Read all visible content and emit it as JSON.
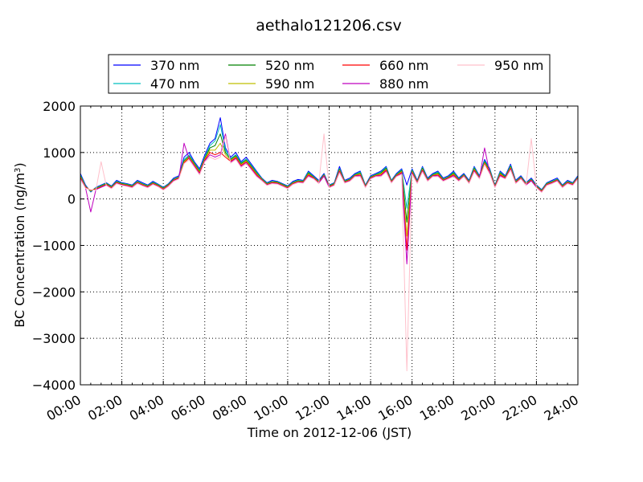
{
  "chart_data": {
    "type": "line",
    "title": "aethalo121206.csv",
    "xlabel": "Time on 2012-12-06 (JST)",
    "ylabel": "BC Concentration (ng/m",
    "ylabel_sup": "3",
    "ylabel_tail": ")",
    "xlim": [
      0,
      24
    ],
    "ylim": [
      -4000,
      2000
    ],
    "xticks": [
      0,
      2,
      4,
      6,
      8,
      10,
      12,
      14,
      16,
      18,
      20,
      22,
      24
    ],
    "xtick_labels": [
      "00:00",
      "02:00",
      "04:00",
      "06:00",
      "08:00",
      "10:00",
      "12:00",
      "14:00",
      "16:00",
      "18:00",
      "20:00",
      "22:00",
      "24:00"
    ],
    "yticks": [
      -4000,
      -3000,
      -2000,
      -1000,
      0,
      1000,
      2000
    ],
    "ytick_labels": [
      "−4000",
      "−3000",
      "−2000",
      "−1000",
      "0",
      "1000",
      "2000"
    ],
    "grid": true,
    "grid_style": "dotted",
    "legend_position": "top",
    "x": [
      0.0,
      0.25,
      0.5,
      0.75,
      1.0,
      1.25,
      1.5,
      1.75,
      2.0,
      2.25,
      2.5,
      2.75,
      3.0,
      3.25,
      3.5,
      3.75,
      4.0,
      4.25,
      4.5,
      4.75,
      5.0,
      5.25,
      5.5,
      5.75,
      6.0,
      6.25,
      6.5,
      6.75,
      7.0,
      7.25,
      7.5,
      7.75,
      8.0,
      8.25,
      8.5,
      8.75,
      9.0,
      9.25,
      9.5,
      9.75,
      10.0,
      10.25,
      10.5,
      10.75,
      11.0,
      11.25,
      11.5,
      11.75,
      12.0,
      12.25,
      12.5,
      12.75,
      13.0,
      13.25,
      13.5,
      13.75,
      14.0,
      14.25,
      14.5,
      14.75,
      15.0,
      15.25,
      15.5,
      15.75,
      16.0,
      16.25,
      16.5,
      16.75,
      17.0,
      17.25,
      17.5,
      17.75,
      18.0,
      18.25,
      18.5,
      18.75,
      19.0,
      19.25,
      19.5,
      19.75,
      20.0,
      20.25,
      20.5,
      20.75,
      21.0,
      21.25,
      21.5,
      21.75,
      22.0,
      22.25,
      22.5,
      22.75,
      23.0,
      23.25,
      23.5,
      23.75,
      24.0
    ],
    "series": [
      {
        "name": "370 nm",
        "color": "#0000ff",
        "values": [
          550,
          300,
          150,
          250,
          300,
          350,
          280,
          400,
          350,
          330,
          300,
          400,
          350,
          300,
          380,
          320,
          250,
          330,
          450,
          500,
          900,
          1000,
          800,
          650,
          950,
          1200,
          1300,
          1750,
          1100,
          900,
          1000,
          800,
          900,
          750,
          600,
          450,
          350,
          400,
          380,
          330,
          280,
          380,
          420,
          400,
          600,
          500,
          400,
          550,
          300,
          350,
          700,
          400,
          450,
          550,
          600,
          300,
          500,
          550,
          600,
          700,
          400,
          550,
          650,
          300,
          650,
          400,
          700,
          450,
          550,
          600,
          450,
          500,
          600,
          450,
          550,
          400,
          700,
          500,
          850,
          650,
          300,
          600,
          500,
          750,
          400,
          500,
          350,
          450,
          300,
          200,
          350,
          400,
          450,
          300,
          400,
          350,
          500
        ]
      },
      {
        "name": "470 nm",
        "color": "#00bfbf",
        "values": [
          520,
          280,
          160,
          240,
          290,
          340,
          270,
          380,
          340,
          320,
          290,
          380,
          330,
          290,
          360,
          310,
          240,
          320,
          430,
          480,
          850,
          950,
          780,
          620,
          900,
          1150,
          1250,
          1600,
          1050,
          870,
          950,
          780,
          860,
          720,
          580,
          440,
          340,
          380,
          370,
          320,
          270,
          360,
          400,
          390,
          580,
          480,
          380,
          530,
          290,
          340,
          660,
          390,
          430,
          530,
          580,
          290,
          480,
          530,
          580,
          680,
          390,
          530,
          630,
          -200,
          630,
          380,
          680,
          430,
          530,
          580,
          430,
          480,
          580,
          430,
          530,
          380,
          680,
          480,
          820,
          630,
          290,
          580,
          480,
          720,
          380,
          480,
          340,
          430,
          290,
          190,
          340,
          380,
          430,
          290,
          380,
          340,
          480
        ]
      },
      {
        "name": "520 nm",
        "color": "#008000",
        "values": [
          500,
          270,
          170,
          230,
          280,
          330,
          260,
          370,
          330,
          310,
          280,
          370,
          320,
          280,
          350,
          300,
          230,
          310,
          420,
          470,
          820,
          920,
          760,
          600,
          880,
          1100,
          1150,
          1400,
          1000,
          850,
          930,
          760,
          840,
          700,
          560,
          430,
          330,
          370,
          360,
          310,
          260,
          350,
          390,
          380,
          560,
          470,
          370,
          520,
          280,
          330,
          640,
          380,
          420,
          520,
          560,
          280,
          470,
          520,
          560,
          660,
          380,
          520,
          610,
          -500,
          610,
          370,
          660,
          420,
          520,
          560,
          420,
          470,
          560,
          420,
          520,
          370,
          660,
          470,
          800,
          610,
          280,
          560,
          470,
          700,
          370,
          470,
          330,
          420,
          280,
          180,
          330,
          370,
          420,
          280,
          370,
          330,
          470
        ]
      },
      {
        "name": "590 nm",
        "color": "#bfbf00",
        "values": [
          480,
          260,
          180,
          220,
          270,
          320,
          250,
          360,
          320,
          300,
          270,
          360,
          310,
          270,
          340,
          290,
          220,
          300,
          410,
          460,
          800,
          900,
          740,
          580,
          860,
          1050,
          1050,
          1200,
          950,
          830,
          910,
          740,
          820,
          680,
          540,
          420,
          320,
          360,
          350,
          300,
          250,
          340,
          380,
          370,
          540,
          460,
          360,
          510,
          270,
          320,
          620,
          370,
          410,
          510,
          540,
          270,
          460,
          510,
          540,
          640,
          370,
          510,
          590,
          -800,
          590,
          360,
          640,
          410,
          510,
          540,
          410,
          460,
          540,
          410,
          510,
          360,
          640,
          460,
          780,
          590,
          270,
          540,
          460,
          680,
          360,
          460,
          320,
          410,
          270,
          170,
          320,
          360,
          410,
          270,
          360,
          320,
          460
        ]
      },
      {
        "name": "660 nm",
        "color": "#ff0000",
        "values": [
          460,
          250,
          190,
          210,
          260,
          310,
          240,
          350,
          310,
          290,
          260,
          350,
          300,
          260,
          330,
          280,
          210,
          290,
          400,
          450,
          780,
          880,
          720,
          560,
          840,
          1000,
          950,
          1000,
          900,
          810,
          890,
          720,
          800,
          660,
          520,
          410,
          310,
          350,
          340,
          290,
          240,
          330,
          370,
          360,
          520,
          450,
          350,
          500,
          260,
          310,
          600,
          360,
          400,
          500,
          520,
          260,
          450,
          500,
          520,
          620,
          360,
          500,
          570,
          -1100,
          570,
          350,
          620,
          400,
          500,
          520,
          400,
          450,
          520,
          400,
          500,
          350,
          620,
          450,
          760,
          570,
          260,
          520,
          450,
          660,
          350,
          450,
          310,
          400,
          260,
          160,
          310,
          350,
          400,
          260,
          350,
          310,
          450
        ]
      },
      {
        "name": "880 nm",
        "color": "#bf00bf",
        "values": [
          440,
          240,
          -280,
          200,
          250,
          300,
          230,
          340,
          300,
          280,
          250,
          340,
          290,
          250,
          320,
          270,
          200,
          280,
          390,
          440,
          1200,
          860,
          700,
          540,
          820,
          950,
          900,
          950,
          1400,
          790,
          870,
          700,
          780,
          640,
          500,
          400,
          300,
          340,
          330,
          280,
          230,
          320,
          360,
          350,
          500,
          440,
          340,
          490,
          250,
          300,
          580,
          350,
          390,
          490,
          500,
          250,
          440,
          490,
          500,
          600,
          350,
          490,
          550,
          -1400,
          550,
          340,
          600,
          390,
          490,
          500,
          390,
          440,
          500,
          390,
          490,
          340,
          600,
          440,
          1100,
          550,
          250,
          500,
          440,
          640,
          340,
          440,
          300,
          390,
          250,
          150,
          300,
          340,
          390,
          250,
          340,
          300,
          440
        ]
      },
      {
        "name": "950 nm",
        "color": "#ffc0cb",
        "values": [
          420,
          230,
          200,
          190,
          800,
          290,
          220,
          330,
          290,
          270,
          240,
          330,
          280,
          240,
          310,
          260,
          190,
          270,
          380,
          430,
          760,
          840,
          680,
          520,
          800,
          900,
          850,
          900,
          1350,
          770,
          850,
          680,
          760,
          620,
          480,
          390,
          290,
          330,
          320,
          270,
          220,
          310,
          350,
          340,
          480,
          430,
          330,
          1400,
          240,
          290,
          560,
          340,
          380,
          480,
          480,
          240,
          430,
          480,
          480,
          580,
          340,
          480,
          530,
          -3700,
          530,
          330,
          580,
          380,
          480,
          480,
          380,
          430,
          480,
          380,
          480,
          330,
          580,
          430,
          740,
          530,
          240,
          480,
          430,
          620,
          330,
          430,
          290,
          1300,
          240,
          140,
          290,
          330,
          380,
          240,
          330,
          290,
          430
        ]
      }
    ]
  }
}
